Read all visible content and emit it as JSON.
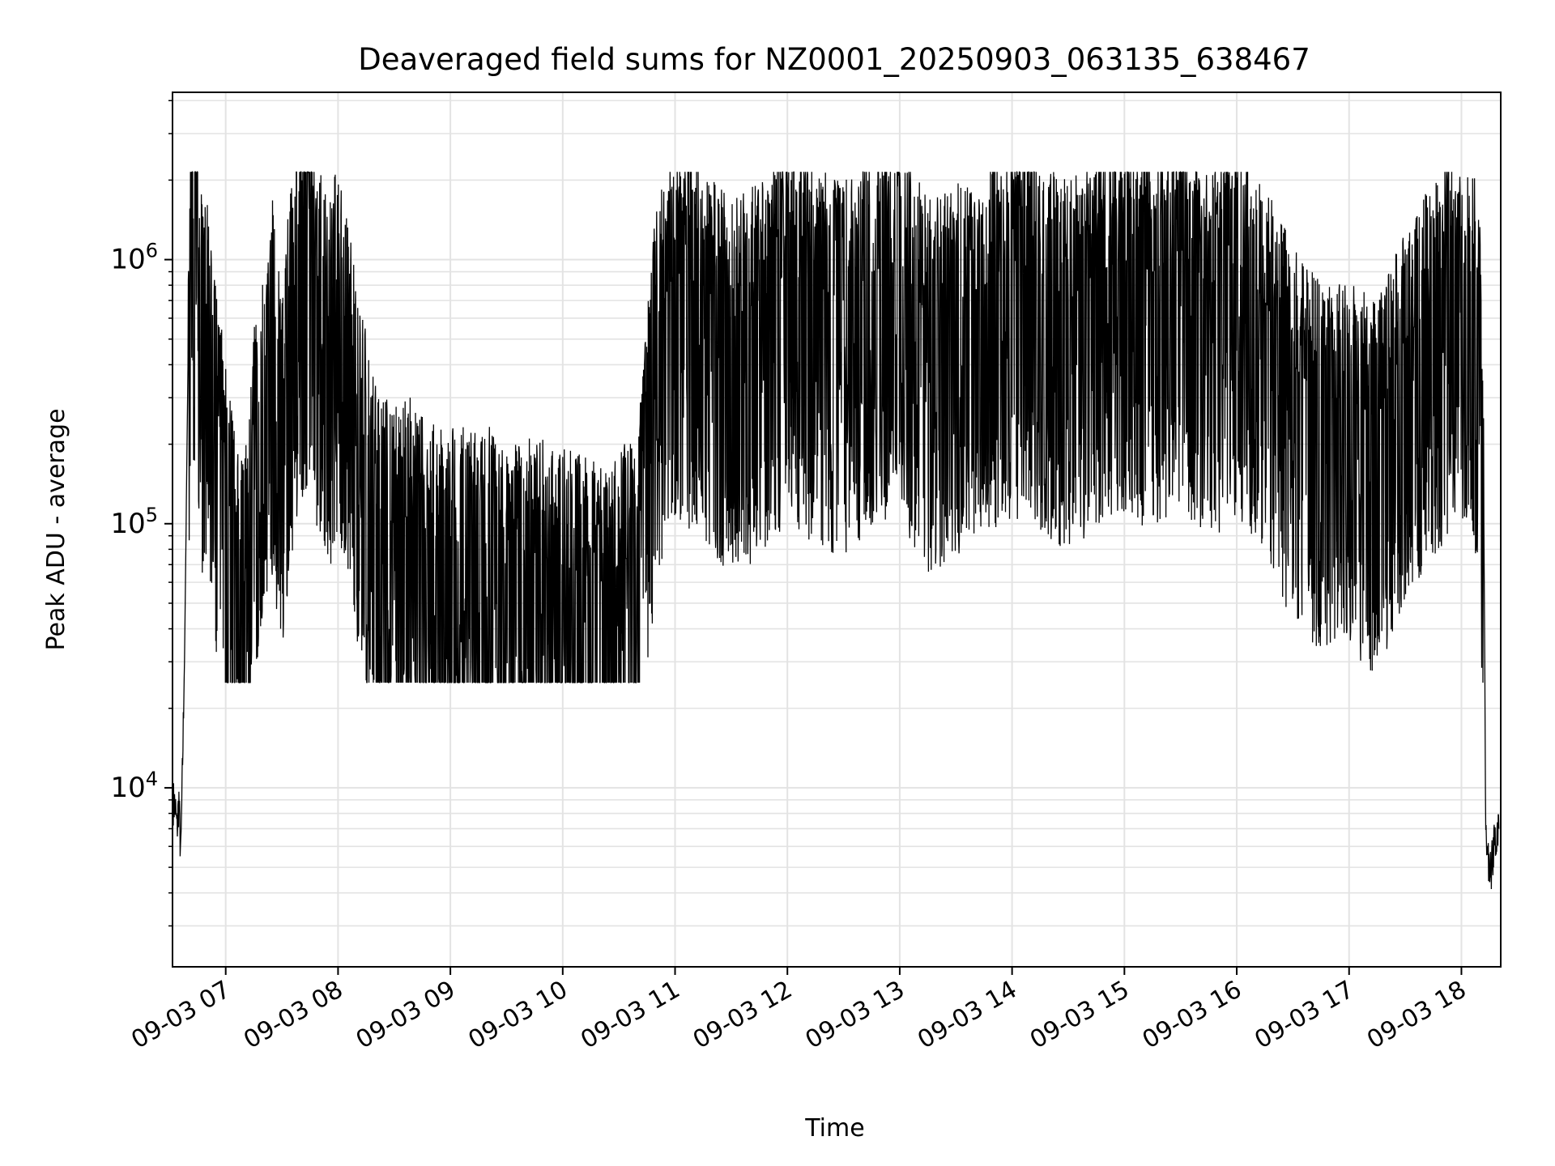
{
  "chart_data": {
    "type": "line",
    "title": "Deaveraged field sums for NZ0001_20250903_063135_638467",
    "xlabel": "Time",
    "ylabel": "Peak ADU - average",
    "yscale": "log",
    "ylim": [
      2100,
      4300000
    ],
    "xlim": [
      "2025-09-03 06:31:35",
      "2025-09-03 18:21:00"
    ],
    "grid": true,
    "line_color": "#000000",
    "x_ticks": [
      {
        "label": "09-03 07",
        "time": "2025-09-03 07:00"
      },
      {
        "label": "09-03 08",
        "time": "2025-09-03 08:00"
      },
      {
        "label": "09-03 09",
        "time": "2025-09-03 09:00"
      },
      {
        "label": "09-03 10",
        "time": "2025-09-03 10:00"
      },
      {
        "label": "09-03 11",
        "time": "2025-09-03 11:00"
      },
      {
        "label": "09-03 12",
        "time": "2025-09-03 12:00"
      },
      {
        "label": "09-03 13",
        "time": "2025-09-03 13:00"
      },
      {
        "label": "09-03 14",
        "time": "2025-09-03 14:00"
      },
      {
        "label": "09-03 15",
        "time": "2025-09-03 15:00"
      },
      {
        "label": "09-03 16",
        "time": "2025-09-03 16:00"
      },
      {
        "label": "09-03 17",
        "time": "2025-09-03 17:00"
      },
      {
        "label": "09-03 18",
        "time": "2025-09-03 18:00"
      }
    ],
    "y_ticks": [
      {
        "base": "10",
        "exp": "4",
        "value": 10000
      },
      {
        "base": "10",
        "exp": "5",
        "value": 100000
      },
      {
        "base": "10",
        "exp": "6",
        "value": 1000000
      }
    ],
    "series": [
      {
        "times": [
          "06:32",
          "06:33",
          "06:34",
          "06:35",
          "06:36",
          "06:38",
          "06:40",
          "06:42",
          "06:43",
          "06:44",
          "06:46",
          "06:48",
          "06:50",
          "06:55",
          "07:00",
          "07:05",
          "07:10",
          "07:15",
          "07:20",
          "07:25",
          "07:30",
          "07:35",
          "07:40",
          "07:45",
          "07:50",
          "07:55",
          "08:00",
          "08:10",
          "08:20",
          "08:30",
          "08:40",
          "08:50",
          "09:00",
          "09:10",
          "09:20",
          "09:30",
          "09:40",
          "09:50",
          "10:00",
          "10:10",
          "10:20",
          "10:30",
          "10:40",
          "10:50",
          "11:00",
          "11:15",
          "11:30",
          "11:45",
          "12:00",
          "12:15",
          "12:30",
          "12:45",
          "13:00",
          "13:15",
          "13:30",
          "13:45",
          "14:00",
          "14:15",
          "14:30",
          "14:45",
          "15:00",
          "15:15",
          "15:30",
          "15:45",
          "16:00",
          "16:15",
          "16:30",
          "16:45",
          "17:00",
          "17:15",
          "17:30",
          "17:45",
          "17:55",
          "18:00",
          "18:05",
          "18:08",
          "18:10",
          "18:12",
          "18:13",
          "18:15",
          "18:18",
          "18:20"
        ],
        "values": [
          9000,
          8500,
          7000,
          9000,
          5500,
          30000,
          500000,
          1300000,
          1500000,
          1700000,
          900000,
          500000,
          700000,
          300000,
          150000,
          80000,
          60000,
          200000,
          400000,
          600000,
          300000,
          700000,
          1100000,
          1300000,
          800000,
          600000,
          900000,
          300000,
          120000,
          100000,
          110000,
          90000,
          90000,
          80000,
          85000,
          70000,
          80000,
          75000,
          70000,
          65000,
          60000,
          70000,
          80000,
          600000,
          900000,
          800000,
          600000,
          700000,
          900000,
          800000,
          700000,
          900000,
          1000000,
          600000,
          700000,
          800000,
          1000000,
          900000,
          700000,
          900000,
          1000000,
          900000,
          1100000,
          800000,
          1000000,
          700000,
          400000,
          300000,
          300000,
          250000,
          500000,
          700000,
          900000,
          1000000,
          900000,
          700000,
          500000,
          100000,
          7000,
          4500,
          6500,
          7000
        ]
      }
    ]
  }
}
